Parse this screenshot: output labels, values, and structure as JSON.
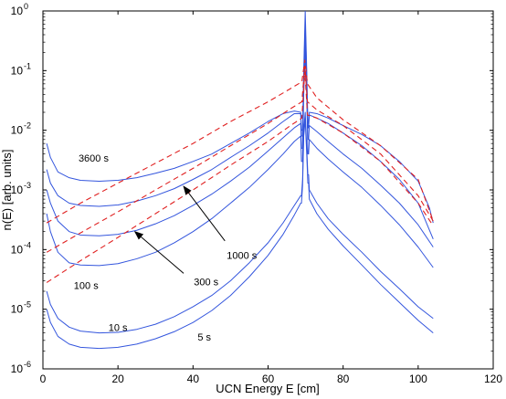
{
  "chart_data": {
    "type": "line",
    "title": "",
    "xlabel": "UCN Energy E [cm]",
    "ylabel": "n(E)  [arb. units]",
    "xlim": [
      0,
      120
    ],
    "ylim": [
      1e-06,
      1
    ],
    "yscale": "log",
    "grid": false,
    "x_ticks": [
      "0",
      "20",
      "40",
      "60",
      "80",
      "100",
      "120"
    ],
    "y_tick_exponents": [
      "-6",
      "-5",
      "-4",
      "-3",
      "-2",
      "-1",
      "0"
    ],
    "y_tick_base": "10",
    "colors": {
      "measured": "#3355dd",
      "fit": "#e02020"
    },
    "series": [
      {
        "style": "measured",
        "points": [
          [
            1,
            0.006
          ],
          [
            2,
            0.0035
          ],
          [
            4,
            0.002
          ],
          [
            7,
            0.0016
          ],
          [
            10,
            0.00145
          ],
          [
            15,
            0.0014
          ],
          [
            20,
            0.00145
          ],
          [
            25,
            0.0016
          ],
          [
            30,
            0.0019
          ],
          [
            35,
            0.0023
          ],
          [
            40,
            0.003
          ],
          [
            45,
            0.004
          ],
          [
            50,
            0.006
          ],
          [
            55,
            0.009
          ],
          [
            60,
            0.014
          ],
          [
            64,
            0.019
          ],
          [
            67,
            0.021
          ],
          [
            68.7,
            0.02
          ],
          [
            68.9,
            0.01
          ],
          [
            69.2,
            0.01
          ],
          [
            69.5,
            0.1
          ],
          [
            69.9,
            1.0
          ],
          [
            70.3,
            0.1
          ],
          [
            70.6,
            0.013
          ],
          [
            70.8,
            0.013
          ],
          [
            71,
            0.02
          ],
          [
            73,
            0.019
          ],
          [
            76,
            0.016
          ],
          [
            80,
            0.012
          ],
          [
            85,
            0.0085
          ],
          [
            90,
            0.0055
          ],
          [
            95,
            0.003
          ],
          [
            100,
            0.0014
          ],
          [
            103,
            0.0005
          ],
          [
            104,
            0.00028
          ]
        ]
      },
      {
        "style": "measured",
        "points": [
          [
            1,
            0.0022
          ],
          [
            2,
            0.0013
          ],
          [
            4,
            0.0008
          ],
          [
            7,
            0.0006
          ],
          [
            10,
            0.00055
          ],
          [
            15,
            0.00053
          ],
          [
            20,
            0.00056
          ],
          [
            25,
            0.00065
          ],
          [
            30,
            0.0008
          ],
          [
            35,
            0.00105
          ],
          [
            40,
            0.0015
          ],
          [
            45,
            0.0022
          ],
          [
            50,
            0.0035
          ],
          [
            55,
            0.0055
          ],
          [
            60,
            0.009
          ],
          [
            64,
            0.014
          ],
          [
            67,
            0.019
          ],
          [
            68.7,
            0.019
          ],
          [
            68.9,
            0.008
          ],
          [
            69.2,
            0.008
          ],
          [
            69.5,
            0.08
          ],
          [
            69.9,
            0.6
          ],
          [
            70.3,
            0.08
          ],
          [
            70.6,
            0.011
          ],
          [
            70.8,
            0.011
          ],
          [
            71,
            0.018
          ],
          [
            73,
            0.016
          ],
          [
            76,
            0.013
          ],
          [
            80,
            0.009
          ],
          [
            85,
            0.0055
          ],
          [
            90,
            0.003
          ],
          [
            95,
            0.0015
          ],
          [
            100,
            0.0006
          ],
          [
            104,
            0.00015
          ]
        ]
      },
      {
        "style": "measured",
        "points": [
          [
            1,
            0.001
          ],
          [
            2,
            0.0006
          ],
          [
            4,
            0.0003
          ],
          [
            7,
            0.0002
          ],
          [
            10,
            0.000175
          ],
          [
            15,
            0.00017
          ],
          [
            20,
            0.00018
          ],
          [
            25,
            0.00021
          ],
          [
            30,
            0.00027
          ],
          [
            35,
            0.00037
          ],
          [
            40,
            0.00055
          ],
          [
            45,
            0.00085
          ],
          [
            50,
            0.0014
          ],
          [
            55,
            0.0024
          ],
          [
            60,
            0.0045
          ],
          [
            64,
            0.0075
          ],
          [
            67,
            0.011
          ],
          [
            68.7,
            0.013
          ],
          [
            68.9,
            0.005
          ],
          [
            69.2,
            0.005
          ],
          [
            69.5,
            0.06
          ],
          [
            69.9,
            0.35
          ],
          [
            70.3,
            0.06
          ],
          [
            70.6,
            0.007
          ],
          [
            70.8,
            0.007
          ],
          [
            71,
            0.012
          ],
          [
            73,
            0.0095
          ],
          [
            76,
            0.0065
          ],
          [
            80,
            0.004
          ],
          [
            85,
            0.0023
          ],
          [
            90,
            0.0012
          ],
          [
            95,
            0.0006
          ],
          [
            100,
            0.00026
          ],
          [
            104,
            0.00011
          ]
        ]
      },
      {
        "style": "measured",
        "points": [
          [
            1,
            0.0004
          ],
          [
            2,
            0.0002
          ],
          [
            4,
            9e-05
          ],
          [
            7,
            6e-05
          ],
          [
            10,
            5.5e-05
          ],
          [
            15,
            5.4e-05
          ],
          [
            20,
            5.8e-05
          ],
          [
            25,
            7e-05
          ],
          [
            30,
            9e-05
          ],
          [
            35,
            0.00013
          ],
          [
            40,
            0.0002
          ],
          [
            45,
            0.00033
          ],
          [
            50,
            0.0006
          ],
          [
            55,
            0.0011
          ],
          [
            60,
            0.0022
          ],
          [
            64,
            0.004
          ],
          [
            67,
            0.0065
          ],
          [
            68.7,
            0.008
          ],
          [
            68.9,
            0.003
          ],
          [
            69.2,
            0.003
          ],
          [
            69.5,
            0.04
          ],
          [
            69.9,
            0.2
          ],
          [
            70.3,
            0.04
          ],
          [
            70.6,
            0.004
          ],
          [
            70.8,
            0.004
          ],
          [
            71,
            0.007
          ],
          [
            73,
            0.005
          ],
          [
            76,
            0.0033
          ],
          [
            80,
            0.002
          ],
          [
            85,
            0.0011
          ],
          [
            90,
            0.00055
          ],
          [
            95,
            0.00026
          ],
          [
            100,
            0.00011
          ],
          [
            104,
            5e-05
          ]
        ]
      },
      {
        "style": "measured",
        "points": [
          [
            1,
            2e-05
          ],
          [
            2,
            1.2e-05
          ],
          [
            4,
            7e-06
          ],
          [
            7,
            5e-06
          ],
          [
            10,
            4.3e-06
          ],
          [
            15,
            4e-06
          ],
          [
            20,
            4.1e-06
          ],
          [
            25,
            4.6e-06
          ],
          [
            30,
            5.6e-06
          ],
          [
            35,
            7.5e-06
          ],
          [
            40,
            1.1e-05
          ],
          [
            45,
            1.7e-05
          ],
          [
            50,
            3e-05
          ],
          [
            55,
            6e-05
          ],
          [
            60,
            0.00013
          ],
          [
            64,
            0.00028
          ],
          [
            67,
            0.00055
          ],
          [
            68.7,
            0.0008
          ],
          [
            68.9,
            0.0008
          ],
          [
            69.2,
            0.0015
          ],
          [
            69.5,
            0.01
          ],
          [
            69.9,
            0.02
          ],
          [
            70.3,
            0.005
          ],
          [
            70.6,
            0.0018
          ],
          [
            70.8,
            0.0018
          ],
          [
            71,
            0.001
          ],
          [
            73,
            0.0006
          ],
          [
            76,
            0.00033
          ],
          [
            80,
            0.00018
          ],
          [
            85,
            9e-05
          ],
          [
            90,
            4.3e-05
          ],
          [
            95,
            2.2e-05
          ],
          [
            100,
            1.1e-05
          ],
          [
            104,
            7e-06
          ]
        ]
      },
      {
        "style": "measured",
        "points": [
          [
            1,
            1e-05
          ],
          [
            2,
            6e-06
          ],
          [
            4,
            3.5e-06
          ],
          [
            7,
            2.6e-06
          ],
          [
            10,
            2.3e-06
          ],
          [
            15,
            2.2e-06
          ],
          [
            20,
            2.3e-06
          ],
          [
            25,
            2.6e-06
          ],
          [
            30,
            3.2e-06
          ],
          [
            35,
            4.2e-06
          ],
          [
            40,
            6e-06
          ],
          [
            45,
            9.5e-06
          ],
          [
            50,
            1.7e-05
          ],
          [
            55,
            3.5e-05
          ],
          [
            60,
            8e-05
          ],
          [
            64,
            0.00018
          ],
          [
            67,
            0.00038
          ],
          [
            68.7,
            0.0006
          ],
          [
            68.9,
            0.0006
          ],
          [
            69.2,
            0.0012
          ],
          [
            69.5,
            0.008
          ],
          [
            69.9,
            0.015
          ],
          [
            70.3,
            0.004
          ],
          [
            70.6,
            0.0013
          ],
          [
            70.8,
            0.0013
          ],
          [
            71,
            0.0007
          ],
          [
            73,
            0.0004
          ],
          [
            76,
            0.00022
          ],
          [
            80,
            0.000115
          ],
          [
            85,
            5.5e-05
          ],
          [
            90,
            2.6e-05
          ],
          [
            95,
            1.3e-05
          ],
          [
            100,
            6.5e-06
          ],
          [
            104,
            4e-06
          ]
        ]
      },
      {
        "style": "fit",
        "points": [
          [
            1,
            0.00028
          ],
          [
            10,
            0.0006
          ],
          [
            20,
            0.0013
          ],
          [
            30,
            0.0028
          ],
          [
            40,
            0.006
          ],
          [
            50,
            0.014
          ],
          [
            60,
            0.03
          ],
          [
            66,
            0.05
          ],
          [
            69,
            0.065
          ],
          [
            69.8,
            0.15
          ],
          [
            70.5,
            0.06
          ],
          [
            73,
            0.035
          ],
          [
            80,
            0.015
          ],
          [
            90,
            0.0055
          ],
          [
            100,
            0.0015
          ],
          [
            104,
            0.0003
          ]
        ]
      },
      {
        "style": "fit",
        "points": [
          [
            1,
            9e-05
          ],
          [
            10,
            0.00019
          ],
          [
            20,
            0.00043
          ],
          [
            30,
            0.001
          ],
          [
            40,
            0.0023
          ],
          [
            50,
            0.0055
          ],
          [
            60,
            0.013
          ],
          [
            66,
            0.023
          ],
          [
            69,
            0.03
          ],
          [
            69.8,
            0.12
          ],
          [
            70.5,
            0.03
          ],
          [
            73,
            0.022
          ],
          [
            80,
            0.012
          ],
          [
            90,
            0.004
          ],
          [
            100,
            0.0008
          ],
          [
            104,
            0.0003
          ]
        ]
      },
      {
        "style": "fit",
        "points": [
          [
            1,
            2.8e-05
          ],
          [
            10,
            6.5e-05
          ],
          [
            20,
            0.00016
          ],
          [
            30,
            0.0004
          ],
          [
            40,
            0.001
          ],
          [
            50,
            0.0026
          ],
          [
            60,
            0.0065
          ],
          [
            66,
            0.012
          ],
          [
            69,
            0.016
          ],
          [
            69.8,
            0.1
          ],
          [
            70.5,
            0.018
          ],
          [
            73,
            0.016
          ],
          [
            80,
            0.009
          ],
          [
            90,
            0.003
          ],
          [
            100,
            0.0006
          ],
          [
            104,
            0.00025
          ]
        ]
      }
    ],
    "annotations": [
      {
        "text": "3600 s",
        "x": 13.5,
        "y": 0.003,
        "arrow": false
      },
      {
        "text": "1000 s",
        "x": 53,
        "y": 7e-05,
        "arrow": true,
        "arrow_to": [
          37.5,
          0.00115
        ],
        "arrow_from": [
          48.5,
          0.00014
        ]
      },
      {
        "text": "300 s",
        "x": 43.5,
        "y": 2.5e-05,
        "arrow": true,
        "arrow_to": [
          24.5,
          0.0002
        ],
        "arrow_from": [
          37.5,
          4e-05
        ]
      },
      {
        "text": "100 s",
        "x": 11.5,
        "y": 2.2e-05,
        "arrow": false
      },
      {
        "text": "10 s",
        "x": 20,
        "y": 4.3e-06,
        "arrow": false
      },
      {
        "text": "5 s",
        "x": 43,
        "y": 3e-06,
        "arrow": false
      }
    ]
  }
}
